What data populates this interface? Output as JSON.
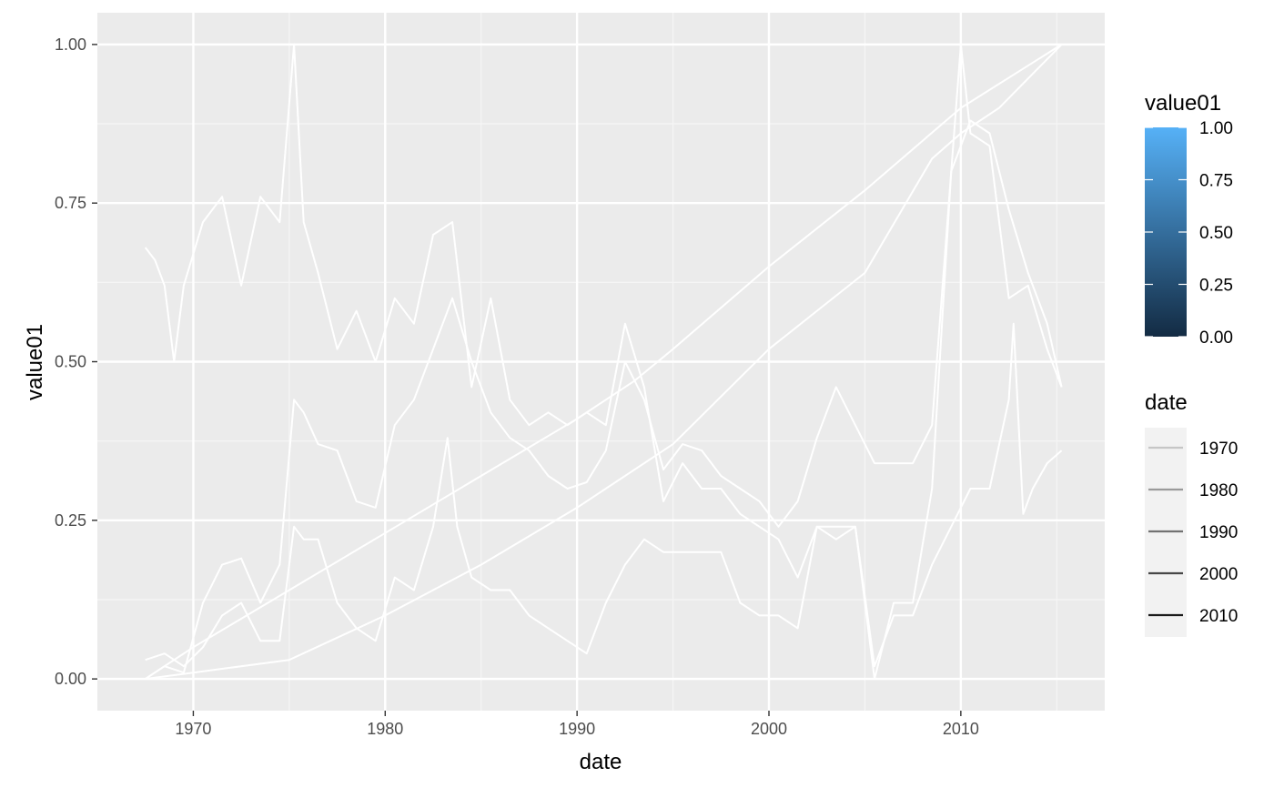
{
  "colors": {
    "panel": "#ebebeb",
    "grid_major": "#ffffff",
    "grid_minor": "#f5f5f5",
    "series_line": "#ffffff",
    "fill_low": "#132b43",
    "fill_high": "#56b1f7"
  },
  "chart_data": {
    "type": "line",
    "xlabel": "date",
    "ylabel": "value01",
    "xlim": [
      "1965-01-01",
      "2017-07-01"
    ],
    "ylim": [
      -0.05,
      1.05
    ],
    "x_ticks": [
      "1970",
      "1980",
      "1990",
      "2000",
      "2010"
    ],
    "y_ticks": [
      "0.00",
      "0.25",
      "0.50",
      "0.75",
      "1.00"
    ],
    "grid": true,
    "series": [
      {
        "points": [
          [
            "1967-07-01",
            0.68
          ],
          [
            "1968-01-01",
            0.66
          ],
          [
            "1968-07-01",
            0.62
          ],
          [
            "1969-01-01",
            0.5
          ],
          [
            "1969-07-01",
            0.62
          ],
          [
            "1970-07-01",
            0.72
          ],
          [
            "1971-07-01",
            0.76
          ],
          [
            "1972-07-01",
            0.62
          ],
          [
            "1973-07-01",
            0.76
          ],
          [
            "1974-07-01",
            0.72
          ],
          [
            "1975-04-01",
            1.0
          ],
          [
            "1975-10-01",
            0.72
          ],
          [
            "1976-07-01",
            0.64
          ],
          [
            "1977-07-01",
            0.52
          ],
          [
            "1978-07-01",
            0.58
          ],
          [
            "1979-07-01",
            0.5
          ],
          [
            "1980-07-01",
            0.6
          ],
          [
            "1981-07-01",
            0.56
          ],
          [
            "1982-07-01",
            0.7
          ],
          [
            "1983-07-01",
            0.72
          ],
          [
            "1984-07-01",
            0.46
          ],
          [
            "1985-07-01",
            0.6
          ],
          [
            "1986-07-01",
            0.44
          ],
          [
            "1987-07-01",
            0.4
          ],
          [
            "1988-07-01",
            0.42
          ],
          [
            "1989-07-01",
            0.4
          ],
          [
            "1990-07-01",
            0.42
          ],
          [
            "1991-07-01",
            0.4
          ],
          [
            "1992-07-01",
            0.56
          ],
          [
            "1993-07-01",
            0.46
          ],
          [
            "1994-07-01",
            0.28
          ],
          [
            "1995-07-01",
            0.34
          ],
          [
            "1996-07-01",
            0.3
          ],
          [
            "1997-07-01",
            0.3
          ],
          [
            "1998-07-01",
            0.26
          ],
          [
            "1999-07-01",
            0.24
          ],
          [
            "2000-07-01",
            0.22
          ],
          [
            "2001-07-01",
            0.16
          ],
          [
            "2002-07-01",
            0.24
          ],
          [
            "2003-07-01",
            0.22
          ],
          [
            "2004-07-01",
            0.24
          ],
          [
            "2005-07-01",
            0.0
          ],
          [
            "2006-07-01",
            0.12
          ],
          [
            "2007-07-01",
            0.12
          ],
          [
            "2008-07-01",
            0.3
          ],
          [
            "2009-07-01",
            0.8
          ],
          [
            "2010-01-01",
            1.0
          ],
          [
            "2010-07-01",
            0.86
          ],
          [
            "2011-07-01",
            0.84
          ],
          [
            "2012-07-01",
            0.6
          ],
          [
            "2013-07-01",
            0.62
          ],
          [
            "2014-07-01",
            0.52
          ],
          [
            "2015-04-01",
            0.46
          ]
        ]
      },
      {
        "points": [
          [
            "1967-07-01",
            0.0
          ],
          [
            "1968-07-01",
            0.02
          ],
          [
            "1969-07-01",
            0.01
          ],
          [
            "1970-07-01",
            0.12
          ],
          [
            "1971-07-01",
            0.18
          ],
          [
            "1972-07-01",
            0.19
          ],
          [
            "1973-07-01",
            0.12
          ],
          [
            "1974-07-01",
            0.18
          ],
          [
            "1975-04-01",
            0.44
          ],
          [
            "1975-10-01",
            0.42
          ],
          [
            "1976-07-01",
            0.37
          ],
          [
            "1977-07-01",
            0.36
          ],
          [
            "1978-07-01",
            0.28
          ],
          [
            "1979-07-01",
            0.27
          ],
          [
            "1980-07-01",
            0.4
          ],
          [
            "1981-07-01",
            0.44
          ],
          [
            "1982-07-01",
            0.52
          ],
          [
            "1983-07-01",
            0.6
          ],
          [
            "1984-07-01",
            0.5
          ],
          [
            "1985-07-01",
            0.42
          ],
          [
            "1986-07-01",
            0.38
          ],
          [
            "1987-07-01",
            0.36
          ],
          [
            "1988-07-01",
            0.32
          ],
          [
            "1989-07-01",
            0.3
          ],
          [
            "1990-07-01",
            0.31
          ],
          [
            "1991-07-01",
            0.36
          ],
          [
            "1992-07-01",
            0.5
          ],
          [
            "1993-07-01",
            0.44
          ],
          [
            "1994-07-01",
            0.33
          ],
          [
            "1995-07-01",
            0.37
          ],
          [
            "1996-07-01",
            0.36
          ],
          [
            "1997-07-01",
            0.32
          ],
          [
            "1998-07-01",
            0.3
          ],
          [
            "1999-07-01",
            0.28
          ],
          [
            "2000-07-01",
            0.24
          ],
          [
            "2001-07-01",
            0.28
          ],
          [
            "2002-07-01",
            0.38
          ],
          [
            "2003-07-01",
            0.46
          ],
          [
            "2004-07-01",
            0.4
          ],
          [
            "2005-07-01",
            0.34
          ],
          [
            "2006-07-01",
            0.34
          ],
          [
            "2007-07-01",
            0.34
          ],
          [
            "2008-07-01",
            0.4
          ],
          [
            "2009-07-01",
            0.8
          ],
          [
            "2010-07-01",
            0.88
          ],
          [
            "2011-07-01",
            0.86
          ],
          [
            "2012-07-01",
            0.74
          ],
          [
            "2013-07-01",
            0.64
          ],
          [
            "2014-07-01",
            0.56
          ],
          [
            "2015-04-01",
            0.46
          ]
        ]
      },
      {
        "points": [
          [
            "1967-07-01",
            0.03
          ],
          [
            "1968-07-01",
            0.04
          ],
          [
            "1969-07-01",
            0.02
          ],
          [
            "1970-07-01",
            0.05
          ],
          [
            "1971-07-01",
            0.1
          ],
          [
            "1972-07-01",
            0.12
          ],
          [
            "1973-07-01",
            0.06
          ],
          [
            "1974-07-01",
            0.06
          ],
          [
            "1975-04-01",
            0.24
          ],
          [
            "1975-10-01",
            0.22
          ],
          [
            "1976-07-01",
            0.22
          ],
          [
            "1977-07-01",
            0.12
          ],
          [
            "1978-07-01",
            0.08
          ],
          [
            "1979-07-01",
            0.06
          ],
          [
            "1980-07-01",
            0.16
          ],
          [
            "1981-07-01",
            0.14
          ],
          [
            "1982-07-01",
            0.24
          ],
          [
            "1983-04-01",
            0.38
          ],
          [
            "1983-10-01",
            0.24
          ],
          [
            "1984-07-01",
            0.16
          ],
          [
            "1985-07-01",
            0.14
          ],
          [
            "1986-07-01",
            0.14
          ],
          [
            "1987-07-01",
            0.1
          ],
          [
            "1988-07-01",
            0.08
          ],
          [
            "1989-07-01",
            0.06
          ],
          [
            "1990-07-01",
            0.04
          ],
          [
            "1991-07-01",
            0.12
          ],
          [
            "1992-07-01",
            0.18
          ],
          [
            "1993-07-01",
            0.22
          ],
          [
            "1994-07-01",
            0.2
          ],
          [
            "1995-07-01",
            0.2
          ],
          [
            "1996-07-01",
            0.2
          ],
          [
            "1997-07-01",
            0.2
          ],
          [
            "1998-07-01",
            0.12
          ],
          [
            "1999-07-01",
            0.1
          ],
          [
            "2000-07-01",
            0.1
          ],
          [
            "2001-07-01",
            0.08
          ],
          [
            "2002-07-01",
            0.24
          ],
          [
            "2003-07-01",
            0.24
          ],
          [
            "2004-07-01",
            0.24
          ],
          [
            "2005-07-01",
            0.02
          ],
          [
            "2006-07-01",
            0.1
          ],
          [
            "2007-07-01",
            0.1
          ],
          [
            "2008-07-01",
            0.18
          ],
          [
            "2009-07-01",
            0.24
          ],
          [
            "2010-07-01",
            0.3
          ],
          [
            "2011-07-01",
            0.3
          ],
          [
            "2012-07-01",
            0.44
          ],
          [
            "2012-10-01",
            0.56
          ],
          [
            "2013-04-01",
            0.26
          ],
          [
            "2013-10-01",
            0.3
          ],
          [
            "2014-07-01",
            0.34
          ],
          [
            "2015-04-01",
            0.36
          ]
        ]
      },
      {
        "points": [
          [
            "1967-07-01",
            0.0
          ],
          [
            "1970-01-01",
            0.05
          ],
          [
            "1975-01-01",
            0.14
          ],
          [
            "1980-01-01",
            0.23
          ],
          [
            "1985-01-01",
            0.32
          ],
          [
            "1990-01-01",
            0.41
          ],
          [
            "1993-01-01",
            0.47
          ],
          [
            "1995-01-01",
            0.52
          ],
          [
            "2000-01-01",
            0.65
          ],
          [
            "2005-01-01",
            0.77
          ],
          [
            "2010-01-01",
            0.9
          ],
          [
            "2015-04-01",
            1.0
          ]
        ]
      },
      {
        "points": [
          [
            "1967-07-01",
            0.0
          ],
          [
            "1970-01-01",
            0.01
          ],
          [
            "1975-01-01",
            0.03
          ],
          [
            "1980-01-01",
            0.1
          ],
          [
            "1985-01-01",
            0.18
          ],
          [
            "1990-01-01",
            0.27
          ],
          [
            "1995-01-01",
            0.37
          ],
          [
            "2000-01-01",
            0.52
          ],
          [
            "2005-01-01",
            0.64
          ],
          [
            "2008-07-01",
            0.82
          ],
          [
            "2010-01-01",
            0.86
          ],
          [
            "2012-01-01",
            0.9
          ],
          [
            "2015-04-01",
            1.0
          ]
        ]
      }
    ],
    "legend": [
      {
        "title": "value01",
        "type": "colorbar",
        "labels": [
          "1.00",
          "0.75",
          "0.50",
          "0.25",
          "0.00"
        ]
      },
      {
        "title": "date",
        "type": "alpha",
        "labels": [
          "1970",
          "1980",
          "1990",
          "2000",
          "2010"
        ]
      }
    ],
    "legend_position": "right"
  }
}
